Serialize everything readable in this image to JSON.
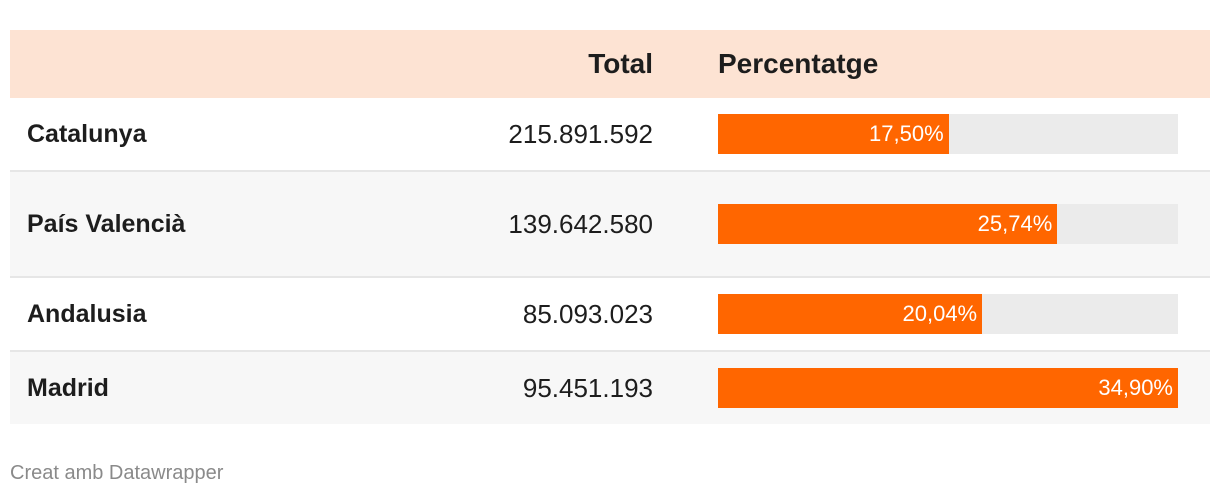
{
  "header": {
    "total_label": "Total",
    "percent_label": "Percentatge"
  },
  "colors": {
    "header_bg": "#fde3d3",
    "bar": "#ff6600",
    "bar_track": "#ebebeb"
  },
  "rows": [
    {
      "name": "Catalunya",
      "total": "215.891.592",
      "percent_label": "17,50%",
      "percent": 17.5
    },
    {
      "name": "País Valencià",
      "total": "139.642.580",
      "percent_label": "25,74%",
      "percent": 25.74
    },
    {
      "name": "Andalusia",
      "total": "85.093.023",
      "percent_label": "20,04%",
      "percent": 20.04
    },
    {
      "name": "Madrid",
      "total": "95.451.193",
      "percent_label": "34,90%",
      "percent": 34.9
    }
  ],
  "chart_data": {
    "type": "table",
    "columns": [
      "",
      "Total",
      "Percentatge"
    ],
    "categories": [
      "Catalunya",
      "País Valencià",
      "Andalusia",
      "Madrid"
    ],
    "series": [
      {
        "name": "Total",
        "values": [
          215891592,
          139642580,
          85093023,
          95451193
        ]
      },
      {
        "name": "Percentatge",
        "values": [
          17.5,
          25.74,
          20.04,
          34.9
        ]
      }
    ],
    "xlim": [
      0,
      34.9
    ]
  },
  "footer": {
    "credit": "Creat amb Datawrapper"
  }
}
